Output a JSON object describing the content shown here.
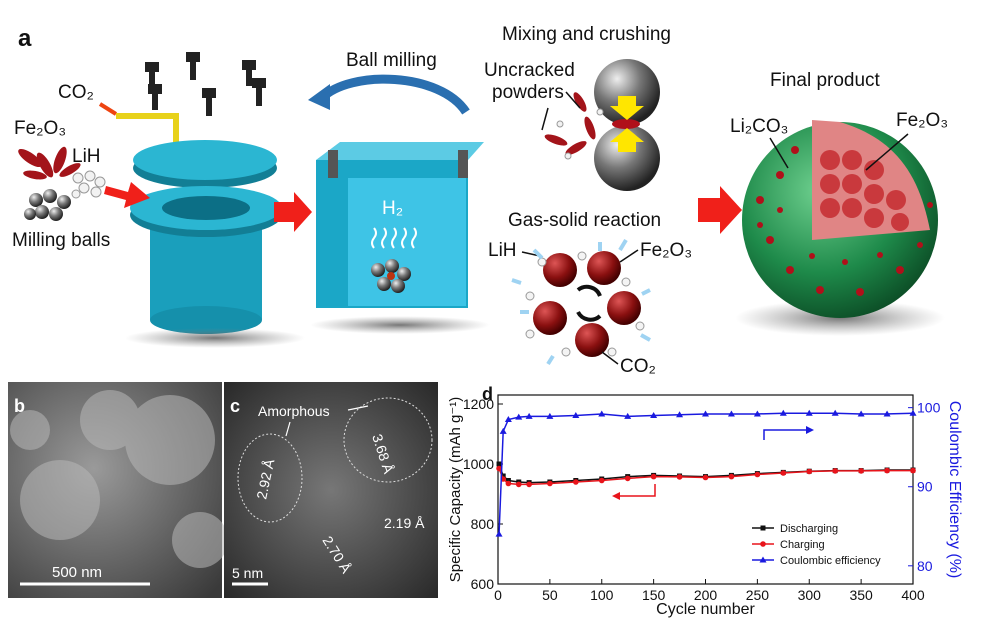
{
  "panel_a": {
    "label": "a",
    "labels": {
      "co2": "CO₂",
      "fe2o3": "Fe₂O₃",
      "lih": "LiH",
      "milling_balls": "Milling balls",
      "ball_milling": "Ball milling",
      "h2": "H₂",
      "mixing": "Mixing and crushing",
      "uncracked": [
        "Uncracked",
        "powders"
      ],
      "gas_solid": "Gas-solid reaction",
      "lih_2": "LiH",
      "fe2o3_2": "Fe₂O₃",
      "co2_2": "CO₂",
      "final": "Final product",
      "li2co3": "Li₂CO₃",
      "fe2o3_3": "Fe₂O₃"
    }
  },
  "panel_b": {
    "label": "b",
    "scale_bar": "500 nm"
  },
  "panel_c": {
    "label": "c",
    "amorphous": "Amorphous",
    "spacings": [
      "2.92 Å",
      "3.68 Å",
      "2.19 Å",
      "2.70 Å"
    ],
    "scale_bar": "5 nm"
  },
  "chart_data": {
    "type": "line",
    "panel_label": "d",
    "xlabel": "Cycle number",
    "ylabel": "Specific Capacity (mAh g⁻¹)",
    "y2label": "Coulombic Efficiency (%)",
    "x": [
      1,
      5,
      10,
      20,
      30,
      50,
      75,
      100,
      125,
      150,
      175,
      200,
      225,
      250,
      275,
      300,
      325,
      350,
      375,
      400
    ],
    "series": [
      {
        "name": "Discharging",
        "color": "#111111",
        "marker": "square",
        "axis": "y",
        "values": [
          1000,
          960,
          945,
          940,
          938,
          940,
          945,
          950,
          958,
          962,
          960,
          958,
          962,
          968,
          972,
          976,
          978,
          978,
          980,
          980
        ]
      },
      {
        "name": "Charging",
        "color": "#e8141b",
        "marker": "circle",
        "axis": "y",
        "values": [
          985,
          950,
          935,
          932,
          932,
          935,
          940,
          945,
          952,
          958,
          957,
          955,
          958,
          965,
          970,
          975,
          977,
          977,
          978,
          978
        ]
      },
      {
        "name": "Coulombic efficiency",
        "color": "#1a1adf",
        "marker": "triangle",
        "axis": "y2",
        "values": [
          84,
          97,
          98.5,
          98.8,
          98.9,
          98.9,
          99,
          99.2,
          98.9,
          99,
          99.1,
          99.2,
          99.2,
          99.2,
          99.3,
          99.3,
          99.3,
          99.2,
          99.2,
          99.3
        ]
      }
    ],
    "xlim": [
      0,
      400
    ],
    "xticks": [
      0,
      50,
      100,
      150,
      200,
      250,
      300,
      350,
      400
    ],
    "ylim": [
      600,
      1230
    ],
    "yticks": [
      600,
      800,
      1000,
      1200
    ],
    "y2lim": [
      77.7,
      101.6
    ],
    "y2ticks": [
      80,
      90,
      100
    ],
    "legend": "lower right"
  }
}
